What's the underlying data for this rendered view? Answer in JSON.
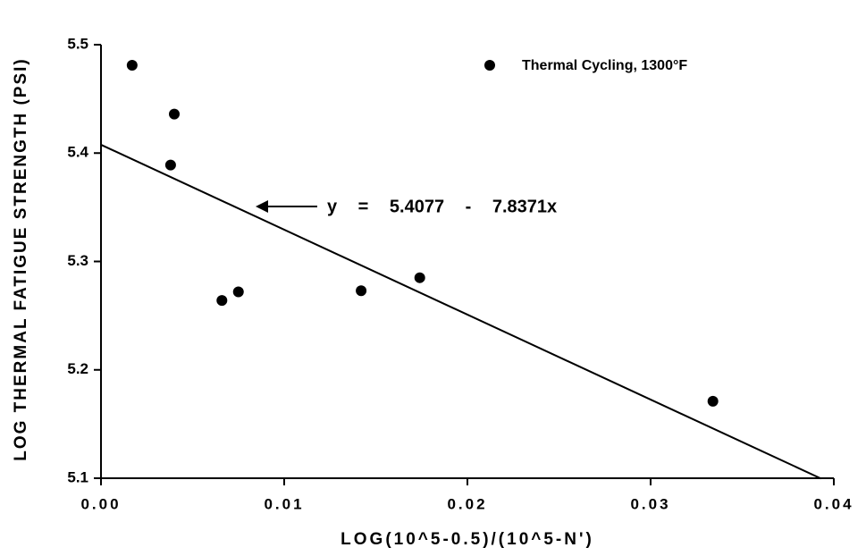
{
  "chart_data": {
    "type": "scatter",
    "x_label": "LOG(10^5-0.5)/(10^5-N')",
    "y_label": "LOG THERMAL FATIGUE STRENGTH (PSI)",
    "series": [
      {
        "name": "Thermal Cycling, 1300°F",
        "color": "#000000",
        "x": [
          0.0017,
          0.004,
          0.0038,
          0.0066,
          0.0075,
          0.0142,
          0.0174,
          0.0334
        ],
        "values": [
          5.481,
          5.436,
          5.389,
          5.264,
          5.272,
          5.273,
          5.285,
          5.171
        ]
      }
    ],
    "fit_line": {
      "x": [
        0,
        0.0393
      ],
      "values": [
        5.4077,
        5.0997
      ],
      "color": "#000000"
    },
    "annotation": "y = 5.4077 - 7.8371x",
    "xlim": [
      0,
      0.04
    ],
    "xticks": [
      {
        "value": 0,
        "label": "0.00"
      },
      {
        "value": 0.01,
        "label": "0.01"
      },
      {
        "value": 0.02,
        "label": "0.02"
      },
      {
        "value": 0.03,
        "label": "0.03"
      },
      {
        "value": 0.04,
        "label": "0.04"
      }
    ],
    "ylim": [
      5.1,
      5.5
    ],
    "yticks": [
      5.1,
      5.2,
      5.3,
      5.4,
      5.5
    ],
    "legend": "top-right",
    "grid": false
  }
}
